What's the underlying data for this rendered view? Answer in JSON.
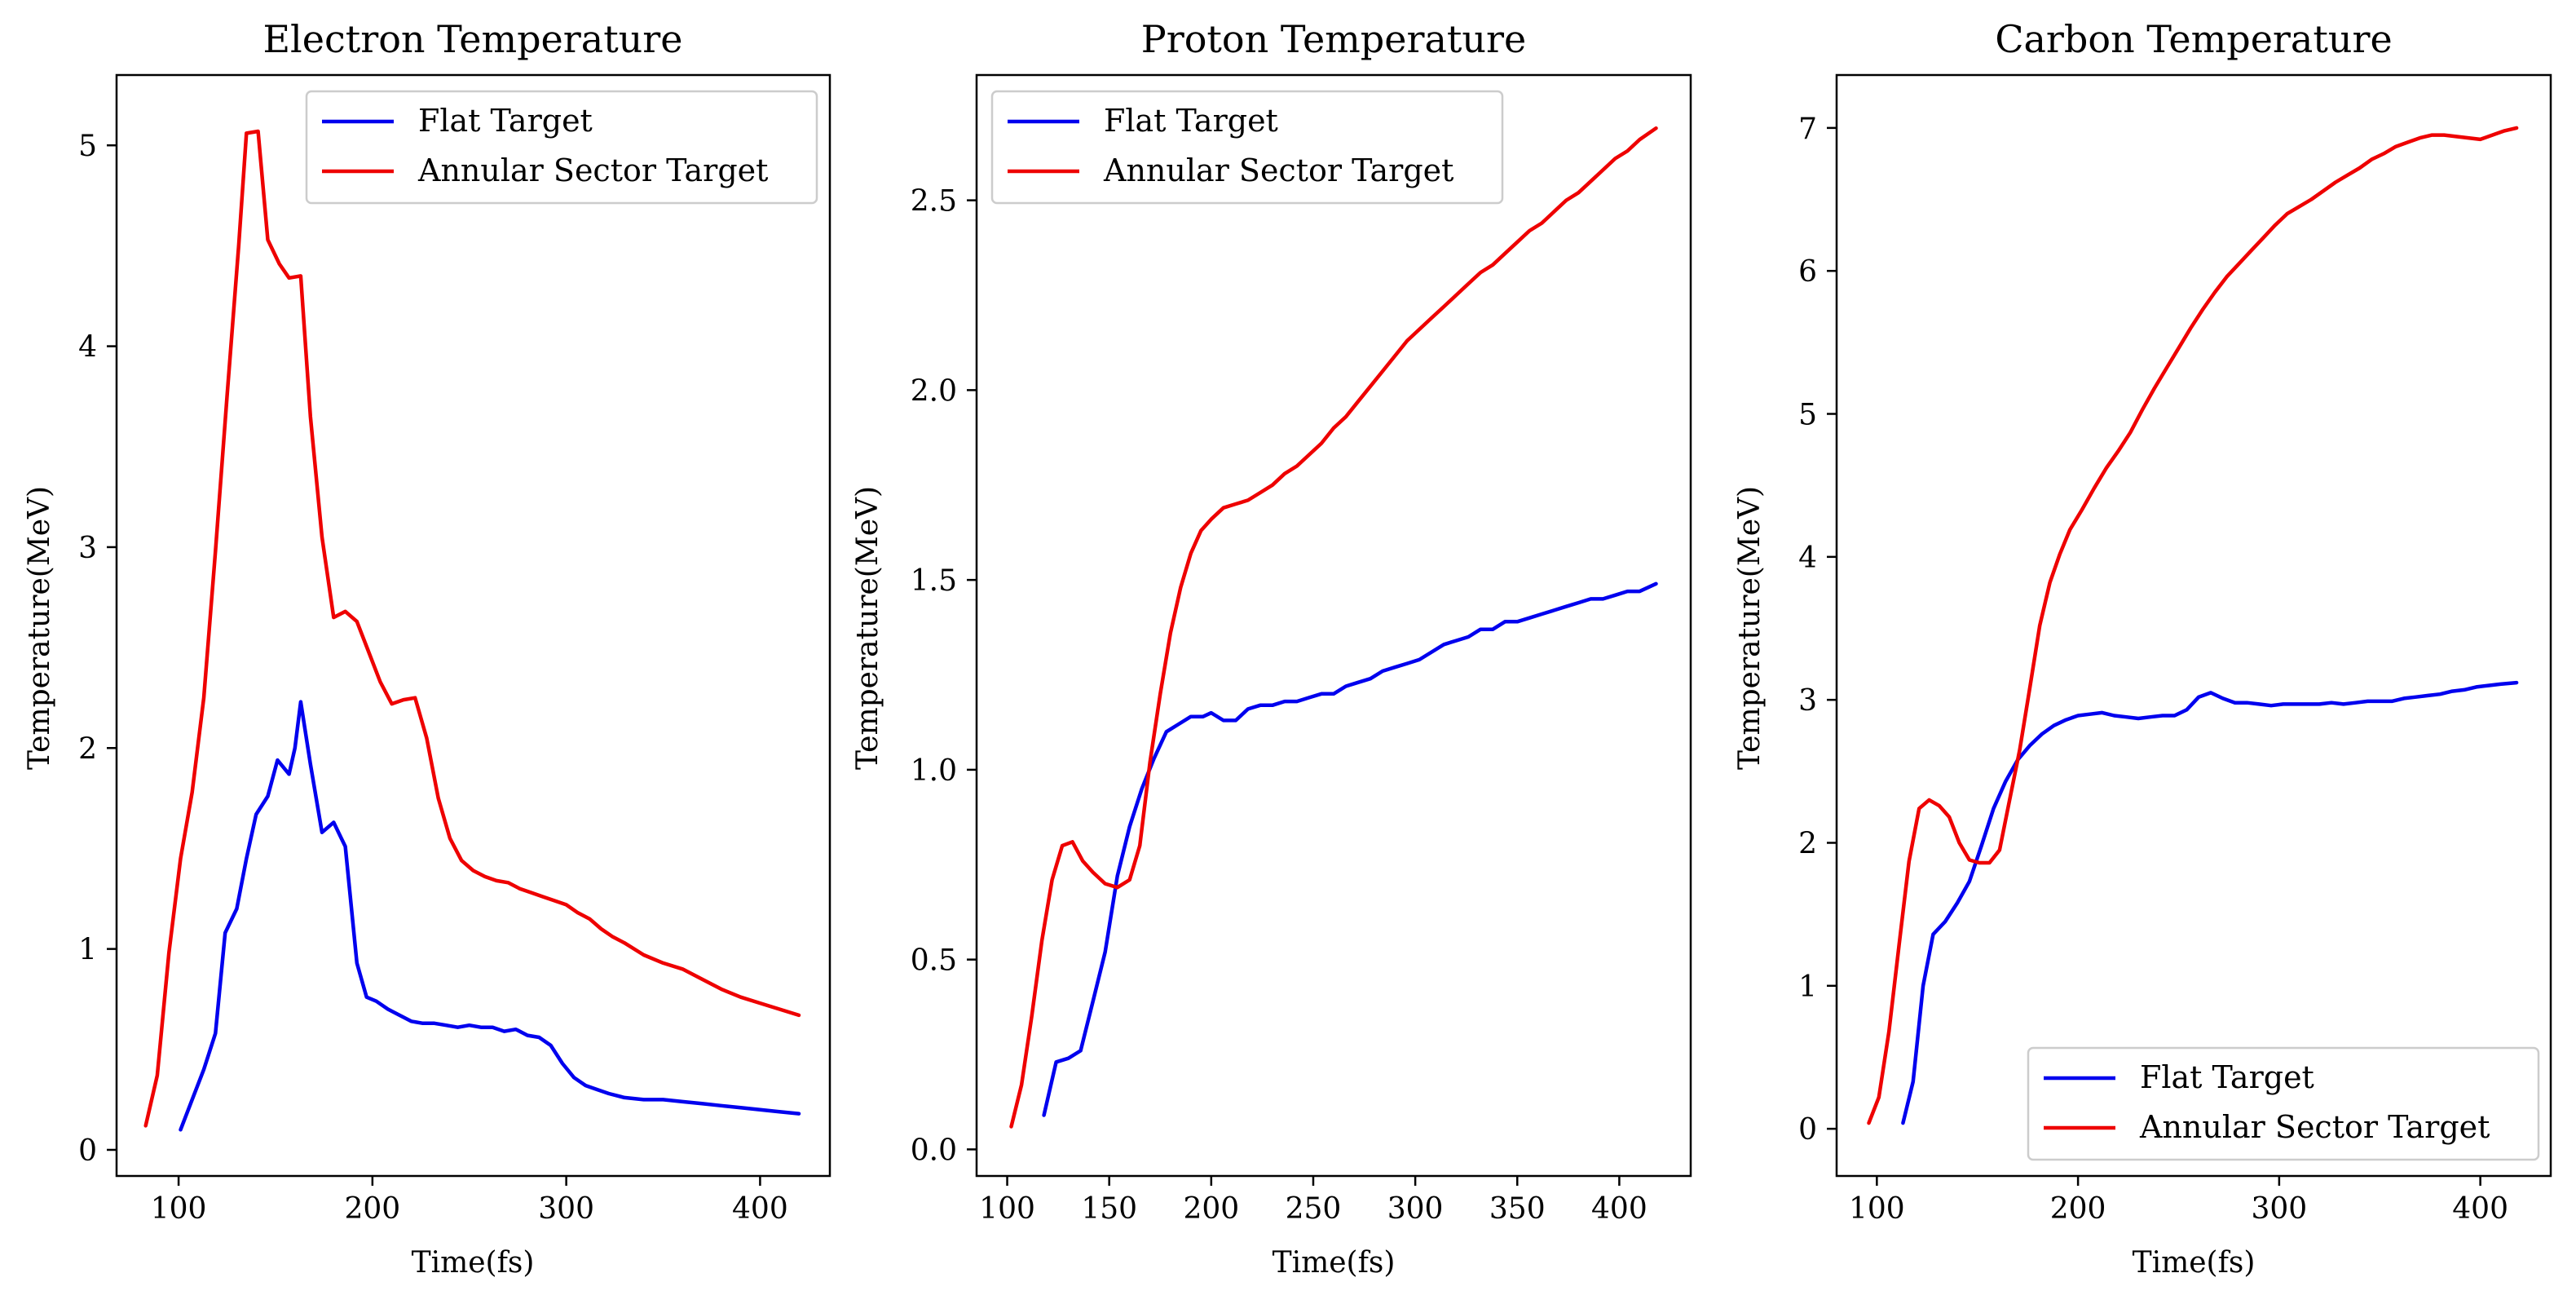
{
  "chart_data": [
    {
      "type": "line",
      "title": "Electron Temperature",
      "xlabel": "Time(fs)",
      "ylabel": "Temperature(MeV)",
      "xlim": [
        68,
        436
      ],
      "ylim": [
        -0.13,
        5.35
      ],
      "xticks": [
        100,
        200,
        300,
        400
      ],
      "yticks": [
        0,
        1,
        2,
        3,
        4,
        5
      ],
      "grid": false,
      "legend_position": "upper right",
      "series": [
        {
          "name": "Flat Target",
          "color": "#0000ee",
          "x": [
            101,
            107,
            113,
            119,
            124,
            130,
            135,
            140,
            146,
            151,
            157,
            160,
            163,
            168,
            174,
            180,
            184,
            186,
            192,
            197,
            202,
            208,
            214,
            220,
            226,
            232,
            238,
            244,
            250,
            256,
            262,
            268,
            274,
            280,
            286,
            292,
            298,
            304,
            310,
            316,
            322,
            330,
            340,
            350,
            360,
            370,
            380,
            390,
            400,
            410,
            420
          ],
          "y": [
            0.1,
            0.25,
            0.4,
            0.58,
            1.08,
            1.2,
            1.45,
            1.67,
            1.76,
            1.94,
            1.87,
            2.0,
            2.23,
            1.92,
            1.58,
            1.63,
            1.55,
            1.51,
            0.93,
            0.76,
            0.74,
            0.7,
            0.67,
            0.64,
            0.63,
            0.63,
            0.62,
            0.61,
            0.62,
            0.61,
            0.61,
            0.59,
            0.6,
            0.57,
            0.56,
            0.52,
            0.43,
            0.36,
            0.32,
            0.3,
            0.28,
            0.26,
            0.25,
            0.25,
            0.24,
            0.23,
            0.22,
            0.21,
            0.2,
            0.19,
            0.18
          ]
        },
        {
          "name": "Annular Sector Target",
          "color": "#ee0000",
          "x": [
            83,
            89,
            95,
            101,
            107,
            113,
            119,
            125,
            131,
            135,
            141,
            146,
            152,
            157,
            163,
            168,
            174,
            180,
            186,
            192,
            198,
            204,
            210,
            216,
            222,
            228,
            234,
            240,
            246,
            252,
            258,
            264,
            270,
            276,
            282,
            288,
            294,
            300,
            306,
            312,
            318,
            324,
            330,
            340,
            350,
            360,
            370,
            380,
            390,
            400,
            410,
            420
          ],
          "y": [
            0.12,
            0.37,
            0.98,
            1.45,
            1.78,
            2.25,
            2.98,
            3.75,
            4.5,
            5.06,
            5.07,
            4.53,
            4.41,
            4.34,
            4.35,
            3.65,
            3.05,
            2.65,
            2.68,
            2.63,
            2.48,
            2.33,
            2.22,
            2.24,
            2.25,
            2.05,
            1.75,
            1.55,
            1.44,
            1.39,
            1.36,
            1.34,
            1.33,
            1.3,
            1.28,
            1.26,
            1.24,
            1.22,
            1.18,
            1.15,
            1.1,
            1.06,
            1.03,
            0.97,
            0.93,
            0.9,
            0.85,
            0.8,
            0.76,
            0.73,
            0.7,
            0.67
          ]
        }
      ]
    },
    {
      "type": "line",
      "title": "Proton Temperature",
      "xlabel": "Time(fs)",
      "ylabel": "Temperature(MeV)",
      "xlim": [
        85,
        435
      ],
      "ylim": [
        -0.07,
        2.83
      ],
      "xticks": [
        100,
        150,
        200,
        250,
        300,
        350,
        400
      ],
      "yticks": [
        0.0,
        0.5,
        1.0,
        1.5,
        2.0,
        2.5
      ],
      "ytick_labels": [
        "0.0",
        "0.5",
        "1.0",
        "1.5",
        "2.0",
        "2.5"
      ],
      "grid": false,
      "legend_position": "upper left",
      "series": [
        {
          "name": "Flat Target",
          "color": "#0000ee",
          "x": [
            118,
            124,
            130,
            136,
            142,
            148,
            154,
            160,
            166,
            172,
            178,
            184,
            190,
            196,
            200,
            206,
            212,
            218,
            224,
            230,
            236,
            242,
            248,
            254,
            260,
            266,
            272,
            278,
            284,
            290,
            296,
            302,
            308,
            314,
            320,
            326,
            332,
            338,
            344,
            350,
            356,
            362,
            368,
            374,
            380,
            386,
            392,
            398,
            404,
            410,
            418
          ],
          "y": [
            0.09,
            0.23,
            0.24,
            0.26,
            0.39,
            0.52,
            0.72,
            0.85,
            0.95,
            1.03,
            1.1,
            1.12,
            1.14,
            1.14,
            1.15,
            1.13,
            1.13,
            1.16,
            1.17,
            1.17,
            1.18,
            1.18,
            1.19,
            1.2,
            1.2,
            1.22,
            1.23,
            1.24,
            1.26,
            1.27,
            1.28,
            1.29,
            1.31,
            1.33,
            1.34,
            1.35,
            1.37,
            1.37,
            1.39,
            1.39,
            1.4,
            1.41,
            1.42,
            1.43,
            1.44,
            1.45,
            1.45,
            1.46,
            1.47,
            1.47,
            1.49
          ]
        },
        {
          "name": "Annular Sector Target",
          "color": "#ee0000",
          "x": [
            102,
            107,
            112,
            117,
            122,
            127,
            132,
            137,
            142,
            148,
            154,
            160,
            165,
            170,
            175,
            180,
            185,
            190,
            195,
            200,
            206,
            212,
            218,
            224,
            230,
            236,
            242,
            248,
            254,
            260,
            266,
            272,
            278,
            284,
            290,
            296,
            302,
            308,
            314,
            320,
            326,
            332,
            338,
            344,
            350,
            356,
            362,
            368,
            374,
            380,
            386,
            392,
            398,
            404,
            410,
            418
          ],
          "y": [
            0.06,
            0.17,
            0.35,
            0.55,
            0.71,
            0.8,
            0.81,
            0.76,
            0.73,
            0.7,
            0.69,
            0.71,
            0.8,
            1.02,
            1.2,
            1.36,
            1.48,
            1.57,
            1.63,
            1.66,
            1.69,
            1.7,
            1.71,
            1.73,
            1.75,
            1.78,
            1.8,
            1.83,
            1.86,
            1.9,
            1.93,
            1.97,
            2.01,
            2.05,
            2.09,
            2.13,
            2.16,
            2.19,
            2.22,
            2.25,
            2.28,
            2.31,
            2.33,
            2.36,
            2.39,
            2.42,
            2.44,
            2.47,
            2.5,
            2.52,
            2.55,
            2.58,
            2.61,
            2.63,
            2.66,
            2.69
          ]
        }
      ]
    },
    {
      "type": "line",
      "title": "Carbon Temperature",
      "xlabel": "Time(fs)",
      "ylabel": "Temperature(MeV)",
      "xlim": [
        80,
        435
      ],
      "ylim": [
        -0.33,
        7.37
      ],
      "xticks": [
        100,
        200,
        300,
        400
      ],
      "yticks": [
        0,
        1,
        2,
        3,
        4,
        5,
        6,
        7
      ],
      "grid": false,
      "legend_position": "lower right",
      "series": [
        {
          "name": "Flat Target",
          "color": "#0000ee",
          "x": [
            113,
            118,
            123,
            128,
            134,
            140,
            146,
            152,
            158,
            164,
            170,
            176,
            182,
            188,
            194,
            200,
            206,
            212,
            218,
            224,
            230,
            236,
            242,
            248,
            254,
            260,
            266,
            272,
            278,
            284,
            290,
            296,
            302,
            308,
            314,
            320,
            326,
            332,
            338,
            344,
            350,
            356,
            362,
            368,
            374,
            380,
            386,
            392,
            398,
            404,
            410,
            418
          ],
          "y": [
            0.04,
            0.33,
            1.0,
            1.36,
            1.45,
            1.58,
            1.73,
            1.98,
            2.24,
            2.43,
            2.58,
            2.68,
            2.76,
            2.82,
            2.86,
            2.89,
            2.9,
            2.91,
            2.89,
            2.88,
            2.87,
            2.88,
            2.89,
            2.89,
            2.93,
            3.02,
            3.05,
            3.01,
            2.98,
            2.98,
            2.97,
            2.96,
            2.97,
            2.97,
            2.97,
            2.97,
            2.98,
            2.97,
            2.98,
            2.99,
            2.99,
            2.99,
            3.01,
            3.02,
            3.03,
            3.04,
            3.06,
            3.07,
            3.09,
            3.1,
            3.11,
            3.12
          ]
        },
        {
          "name": "Annular Sector Target",
          "color": "#ee0000",
          "x": [
            96,
            101,
            106,
            111,
            116,
            121,
            126,
            131,
            136,
            141,
            146,
            151,
            156,
            161,
            166,
            171,
            176,
            181,
            186,
            191,
            196,
            202,
            208,
            214,
            220,
            226,
            232,
            238,
            244,
            250,
            256,
            262,
            268,
            274,
            280,
            286,
            292,
            298,
            304,
            310,
            316,
            322,
            328,
            334,
            340,
            346,
            352,
            358,
            364,
            370,
            376,
            382,
            388,
            394,
            400,
            406,
            412,
            418
          ],
          "y": [
            0.04,
            0.22,
            0.68,
            1.28,
            1.87,
            2.24,
            2.3,
            2.26,
            2.18,
            2.0,
            1.88,
            1.86,
            1.86,
            1.95,
            2.3,
            2.65,
            3.08,
            3.52,
            3.82,
            4.02,
            4.19,
            4.33,
            4.48,
            4.62,
            4.74,
            4.87,
            5.03,
            5.18,
            5.32,
            5.46,
            5.6,
            5.73,
            5.85,
            5.96,
            6.05,
            6.14,
            6.23,
            6.32,
            6.4,
            6.45,
            6.5,
            6.56,
            6.62,
            6.67,
            6.72,
            6.78,
            6.82,
            6.87,
            6.9,
            6.93,
            6.95,
            6.95,
            6.94,
            6.93,
            6.92,
            6.95,
            6.98,
            7.0
          ]
        }
      ]
    }
  ]
}
